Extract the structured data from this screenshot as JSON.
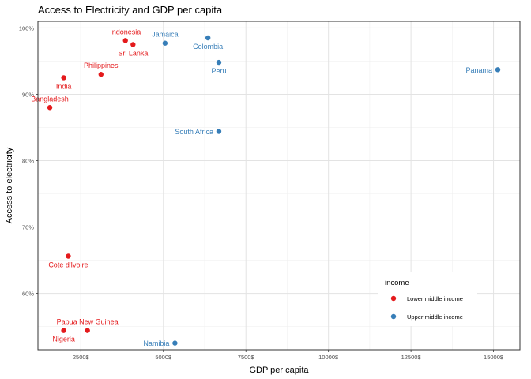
{
  "chart_data": {
    "type": "scatter",
    "title": "Access to Electricity and GDP per capita",
    "xlabel": "GDP per capita",
    "ylabel": "Access to electricity",
    "xlim": [
      1200,
      15800
    ],
    "ylim": [
      51.5,
      101
    ],
    "x_ticks": [
      2500,
      5000,
      7500,
      10000,
      12500,
      15000
    ],
    "x_tick_labels": [
      "2500$",
      "5000$",
      "7500$",
      "10000$",
      "12500$",
      "15000$"
    ],
    "y_ticks": [
      60,
      70,
      80,
      90,
      100
    ],
    "y_tick_labels": [
      "60%",
      "70%",
      "80%",
      "90%",
      "100%"
    ],
    "grid": true,
    "legend": {
      "title": "income",
      "position": "bottom-right"
    },
    "series": [
      {
        "name": "Lower middle income",
        "color": "#e41a1c",
        "points": [
          {
            "label": "Indonesia",
            "x": 3850,
            "y": 98.1,
            "label_pos": "above"
          },
          {
            "label": "Sri Lanka",
            "x": 4080,
            "y": 97.5,
            "label_pos": "below"
          },
          {
            "label": "Philippines",
            "x": 3110,
            "y": 93.0,
            "label_pos": "above"
          },
          {
            "label": "India",
            "x": 1980,
            "y": 92.5,
            "label_pos": "below"
          },
          {
            "label": "Bangladesh",
            "x": 1560,
            "y": 88.0,
            "label_pos": "above"
          },
          {
            "label": "Cote d'Ivoire",
            "x": 2120,
            "y": 65.6,
            "label_pos": "below"
          },
          {
            "label": "Papua New Guinea",
            "x": 2700,
            "y": 54.4,
            "label_pos": "above"
          },
          {
            "label": "Nigeria",
            "x": 1980,
            "y": 54.4,
            "label_pos": "below"
          }
        ]
      },
      {
        "name": "Upper middle income",
        "color": "#377eb8",
        "points": [
          {
            "label": "Jamaica",
            "x": 5050,
            "y": 97.7,
            "label_pos": "above"
          },
          {
            "label": "Colombia",
            "x": 6350,
            "y": 98.5,
            "label_pos": "below"
          },
          {
            "label": "Peru",
            "x": 6680,
            "y": 94.8,
            "label_pos": "below"
          },
          {
            "label": "Panama",
            "x": 15130,
            "y": 93.7,
            "label_pos": "left"
          },
          {
            "label": "South Africa",
            "x": 6680,
            "y": 84.4,
            "label_pos": "left"
          },
          {
            "label": "Namibia",
            "x": 5350,
            "y": 52.5,
            "label_pos": "left"
          }
        ]
      }
    ]
  }
}
